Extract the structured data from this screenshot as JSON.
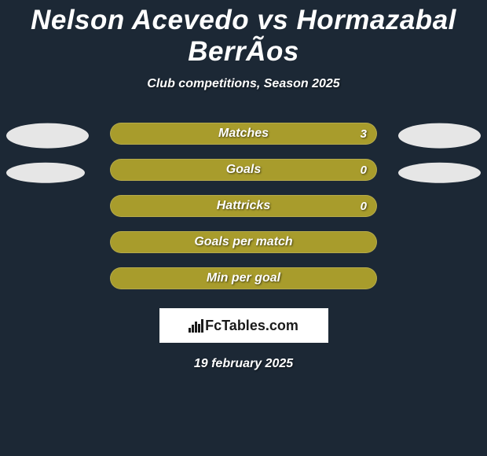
{
  "title": "Nelson Acevedo vs Hormazabal BerrÃ­os",
  "subtitle": "Club competitions, Season 2025",
  "date": "19 february 2025",
  "logo_text": "FcTables.com",
  "colors": {
    "background": "#1c2835",
    "bar_fill": "#a89c2c",
    "text": "#ffffff",
    "ellipse_left": "#e6e6e6",
    "ellipse_right": "#e6e6e6"
  },
  "ellipse_sizes": {
    "row0": {
      "left_w": 105,
      "left_h": 32,
      "right_w": 105,
      "right_h": 32
    },
    "row1": {
      "left_w": 100,
      "left_h": 26,
      "right_w": 105,
      "right_h": 26
    }
  },
  "stats": [
    {
      "label": "Matches",
      "value": "3",
      "show_ellipses": true,
      "ellipse_key": "row0"
    },
    {
      "label": "Goals",
      "value": "0",
      "show_ellipses": true,
      "ellipse_key": "row1"
    },
    {
      "label": "Hattricks",
      "value": "0",
      "show_ellipses": false
    },
    {
      "label": "Goals per match",
      "value": "",
      "show_ellipses": false
    },
    {
      "label": "Min per goal",
      "value": "",
      "show_ellipses": false
    }
  ]
}
